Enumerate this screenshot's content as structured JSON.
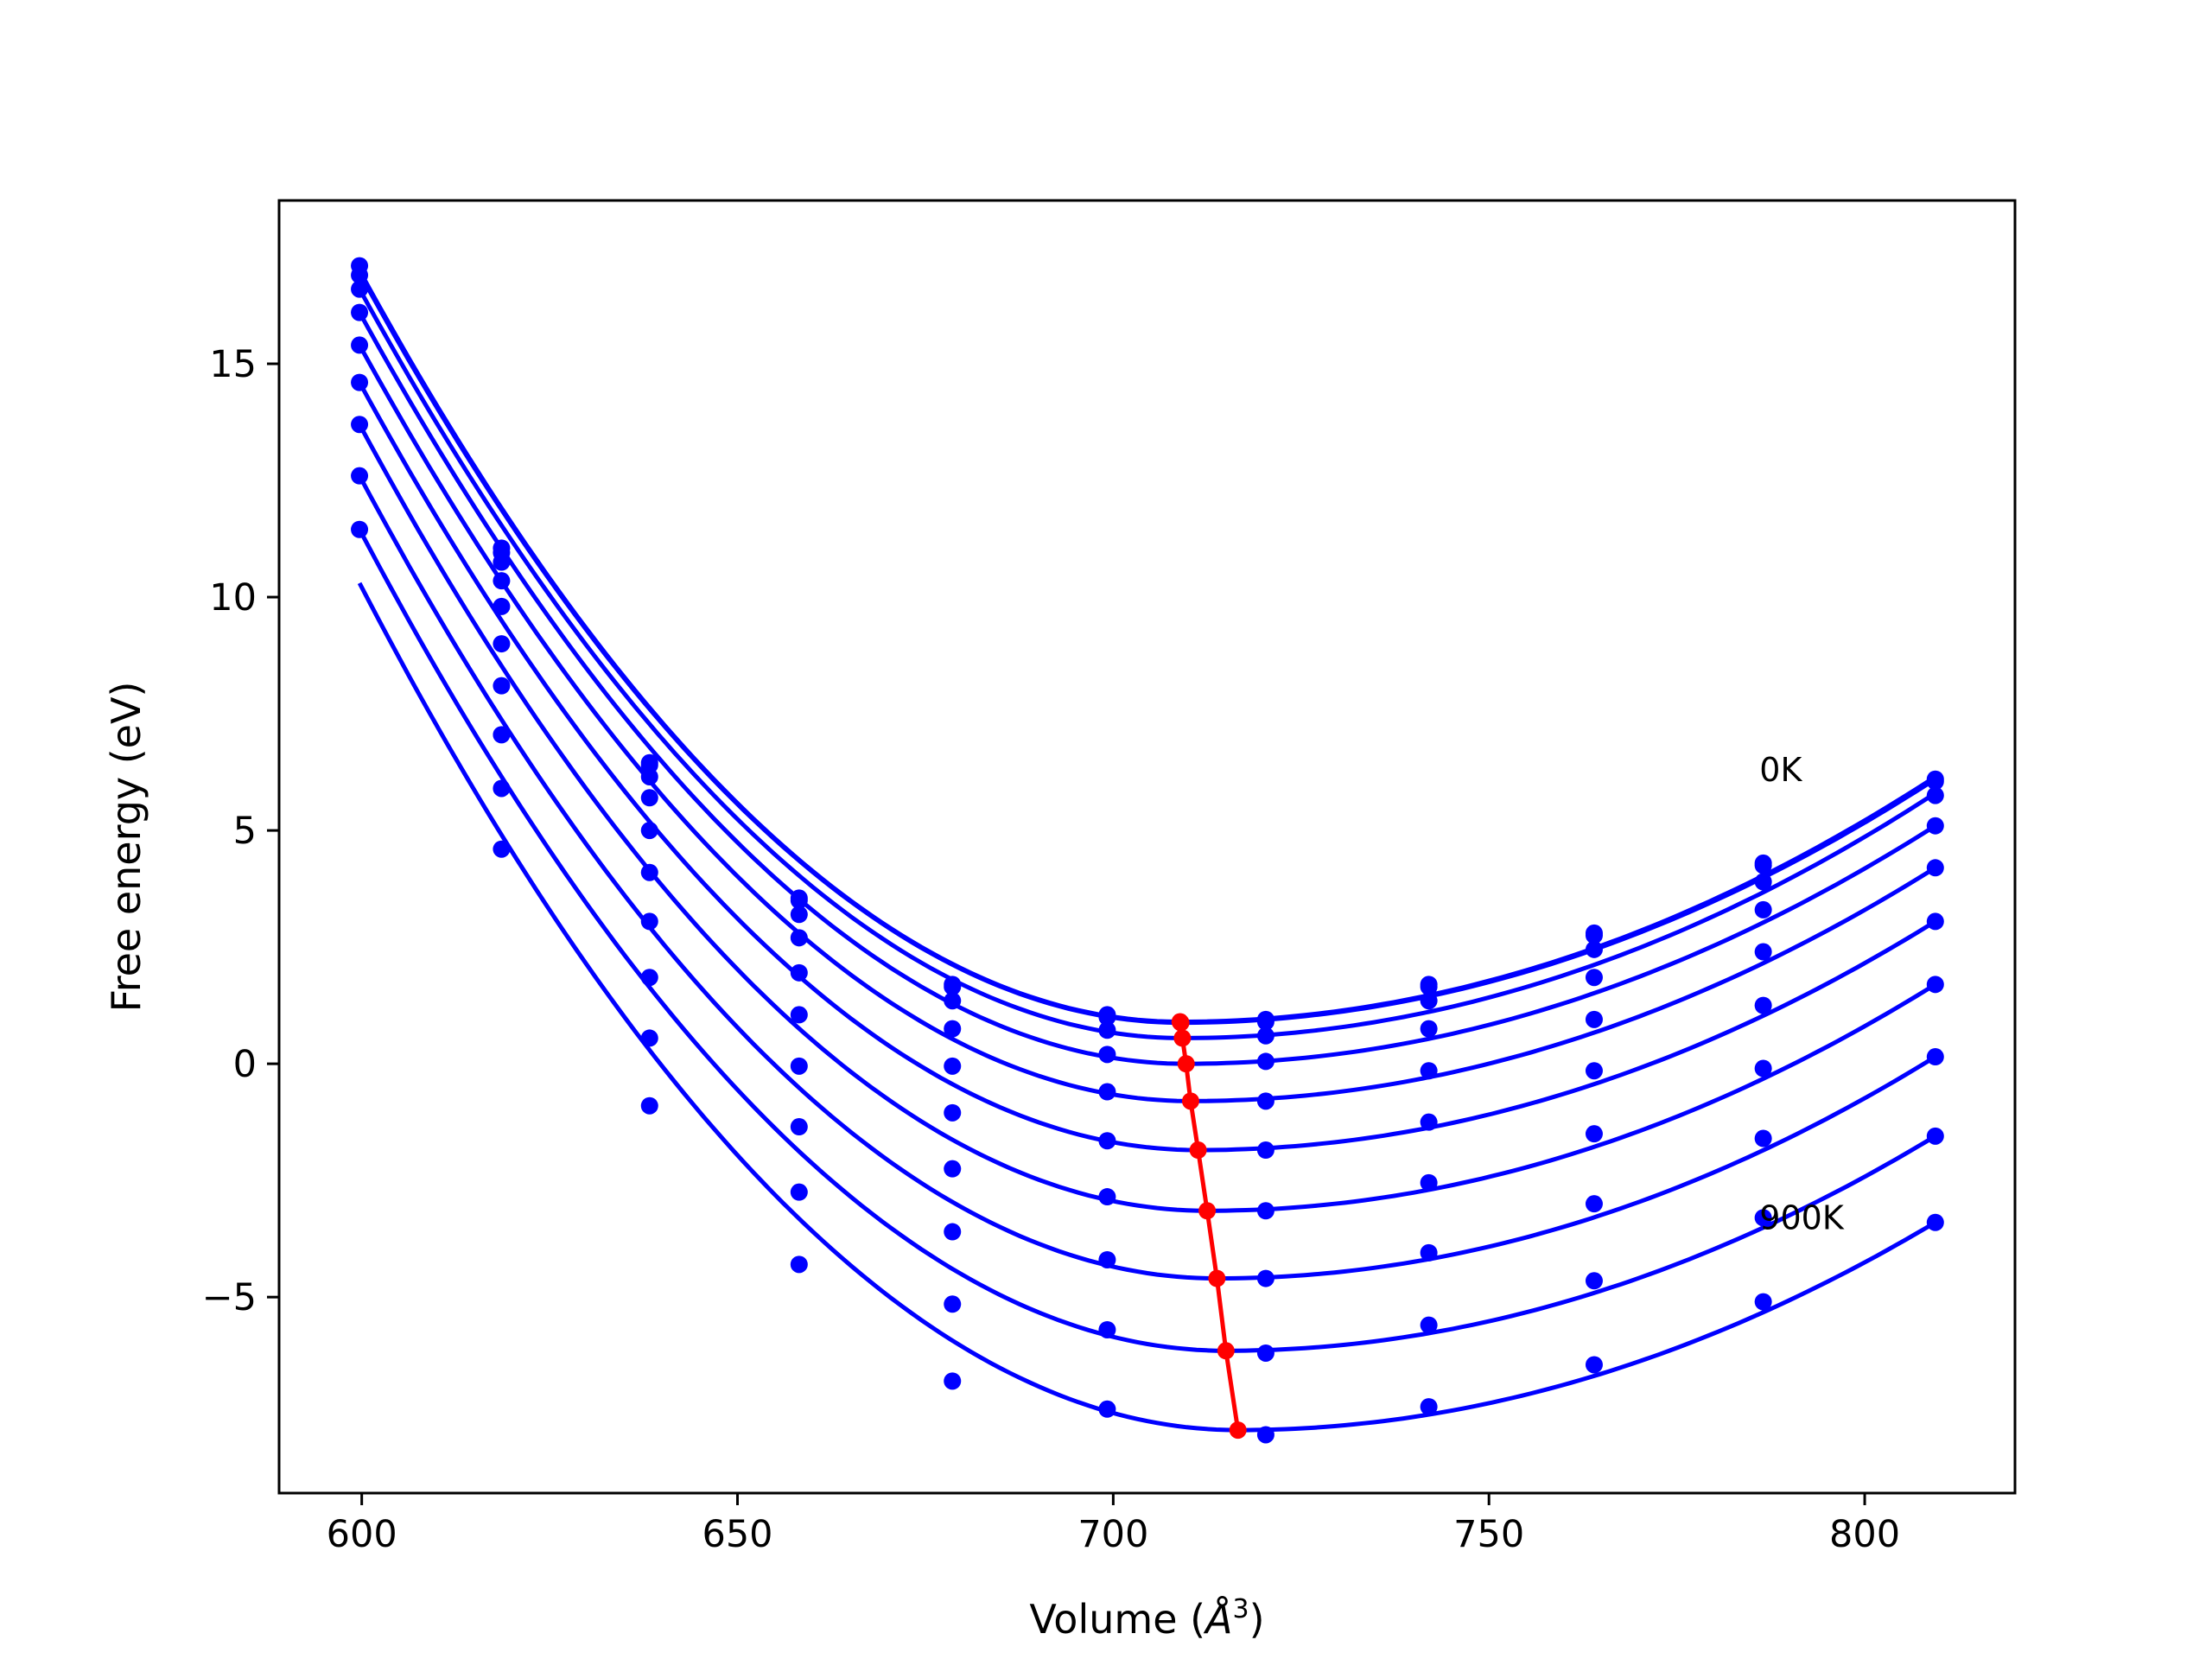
{
  "chart_data": {
    "type": "line",
    "title": "",
    "xlabel": "Volume (Å³)",
    "xlabel_parts": {
      "prefix": "Volume (",
      "unit": "Å",
      "exponent": "3",
      "suffix": ")"
    },
    "ylabel": "Free energy (eV)",
    "xlim": [
      589,
      820
    ],
    "ylim": [
      -9.2,
      18.5
    ],
    "x_ticks": [
      600,
      650,
      700,
      750,
      800
    ],
    "y_ticks": [
      15,
      10,
      5,
      0,
      -5
    ],
    "y_tick_labels": [
      "15",
      "10",
      "5",
      "0",
      "−5"
    ],
    "grid": false,
    "legend": null,
    "annotations": [
      {
        "text": "0K",
        "x": 786,
        "y": 6.3
      },
      {
        "text": "900K",
        "x": 786,
        "y": -3.3
      }
    ],
    "point_volumes": [
      599.7,
      618.6,
      638.3,
      658.2,
      678.6,
      699.2,
      720.3,
      742.0,
      764.0,
      786.5,
      809.4
    ],
    "series": [
      {
        "curve": {
          "min_volume": 708.9,
          "min_energy": 0.9,
          "left_energy": 17.0,
          "right_energy": 6.15
        },
        "points": [
          17.1,
          11.05,
          6.45,
          3.55,
          1.7,
          1.05,
          0.95,
          1.7,
          2.8,
          4.3,
          6.1
        ]
      },
      {
        "curve": {
          "min_volume": 709.0,
          "min_energy": 0.88,
          "left_energy": 16.95,
          "right_energy": 6.1
        },
        "points": [
          16.9,
          10.95,
          6.4,
          3.5,
          1.65,
          1.0,
          0.9,
          1.65,
          2.75,
          4.25,
          6.05
        ]
      },
      {
        "curve": {
          "min_volume": 709.2,
          "min_energy": 0.55,
          "left_energy": 16.6,
          "right_energy": 5.8
        },
        "points": [
          16.6,
          10.75,
          6.15,
          3.2,
          1.35,
          0.72,
          0.6,
          1.35,
          2.45,
          3.9,
          5.75
        ]
      },
      {
        "curve": {
          "min_volume": 709.7,
          "min_energy": 0.0,
          "left_energy": 16.1,
          "right_energy": 5.1
        },
        "points": [
          16.1,
          10.35,
          5.7,
          2.7,
          0.75,
          0.2,
          0.05,
          0.75,
          1.85,
          3.3,
          5.1
        ]
      },
      {
        "curve": {
          "min_volume": 710.3,
          "min_energy": -0.8,
          "left_energy": 15.4,
          "right_energy": 4.2
        },
        "points": [
          15.4,
          9.8,
          5.0,
          1.95,
          -0.05,
          -0.6,
          -0.8,
          -0.15,
          0.95,
          2.4,
          4.2
        ]
      },
      {
        "curve": {
          "min_volume": 711.3,
          "min_energy": -1.85,
          "left_energy": 14.6,
          "right_energy": 3.05
        },
        "points": [
          14.6,
          9.0,
          4.1,
          1.05,
          -1.05,
          -1.65,
          -1.85,
          -1.25,
          -0.15,
          1.25,
          3.05
        ]
      },
      {
        "curve": {
          "min_volume": 712.5,
          "min_energy": -3.15,
          "left_energy": 13.7,
          "right_energy": 1.7
        },
        "points": [
          13.7,
          8.1,
          3.05,
          -0.05,
          -2.25,
          -2.85,
          -3.15,
          -2.55,
          -1.5,
          -0.1,
          1.7
        ]
      },
      {
        "curve": {
          "min_volume": 713.8,
          "min_energy": -4.6,
          "left_energy": 12.6,
          "right_energy": 0.15
        },
        "points": [
          12.6,
          7.05,
          1.85,
          -1.35,
          -3.6,
          -4.2,
          -4.6,
          -4.05,
          -3.0,
          -1.6,
          0.15
        ]
      },
      {
        "curve": {
          "min_volume": 715.0,
          "min_energy": -6.15,
          "left_energy": 11.45,
          "right_energy": -1.55
        },
        "points": [
          11.45,
          5.9,
          0.55,
          -2.75,
          -5.15,
          -5.7,
          -6.2,
          -5.6,
          -4.65,
          -3.3,
          -1.55
        ]
      },
      {
        "curve": {
          "min_volume": 716.6,
          "min_energy": -7.85,
          "left_energy": 10.3,
          "right_energy": -3.4
        },
        "points": [
          null,
          4.6,
          -0.9,
          -4.3,
          -6.8,
          -7.4,
          -7.95,
          -7.35,
          -6.45,
          -5.1,
          -3.4
        ]
      }
    ],
    "minimum_path": [
      [
        708.9,
        0.9
      ],
      [
        709.0,
        0.88
      ],
      [
        709.2,
        0.55
      ],
      [
        709.7,
        0.0
      ],
      [
        710.3,
        -0.8
      ],
      [
        711.3,
        -1.85
      ],
      [
        712.5,
        -3.15
      ],
      [
        713.8,
        -4.6
      ],
      [
        715.0,
        -6.15
      ],
      [
        716.6,
        -7.85
      ]
    ],
    "colors": {
      "curves": "#0000ff",
      "minimum_path": "#ff0000",
      "axes": "#000000"
    }
  }
}
